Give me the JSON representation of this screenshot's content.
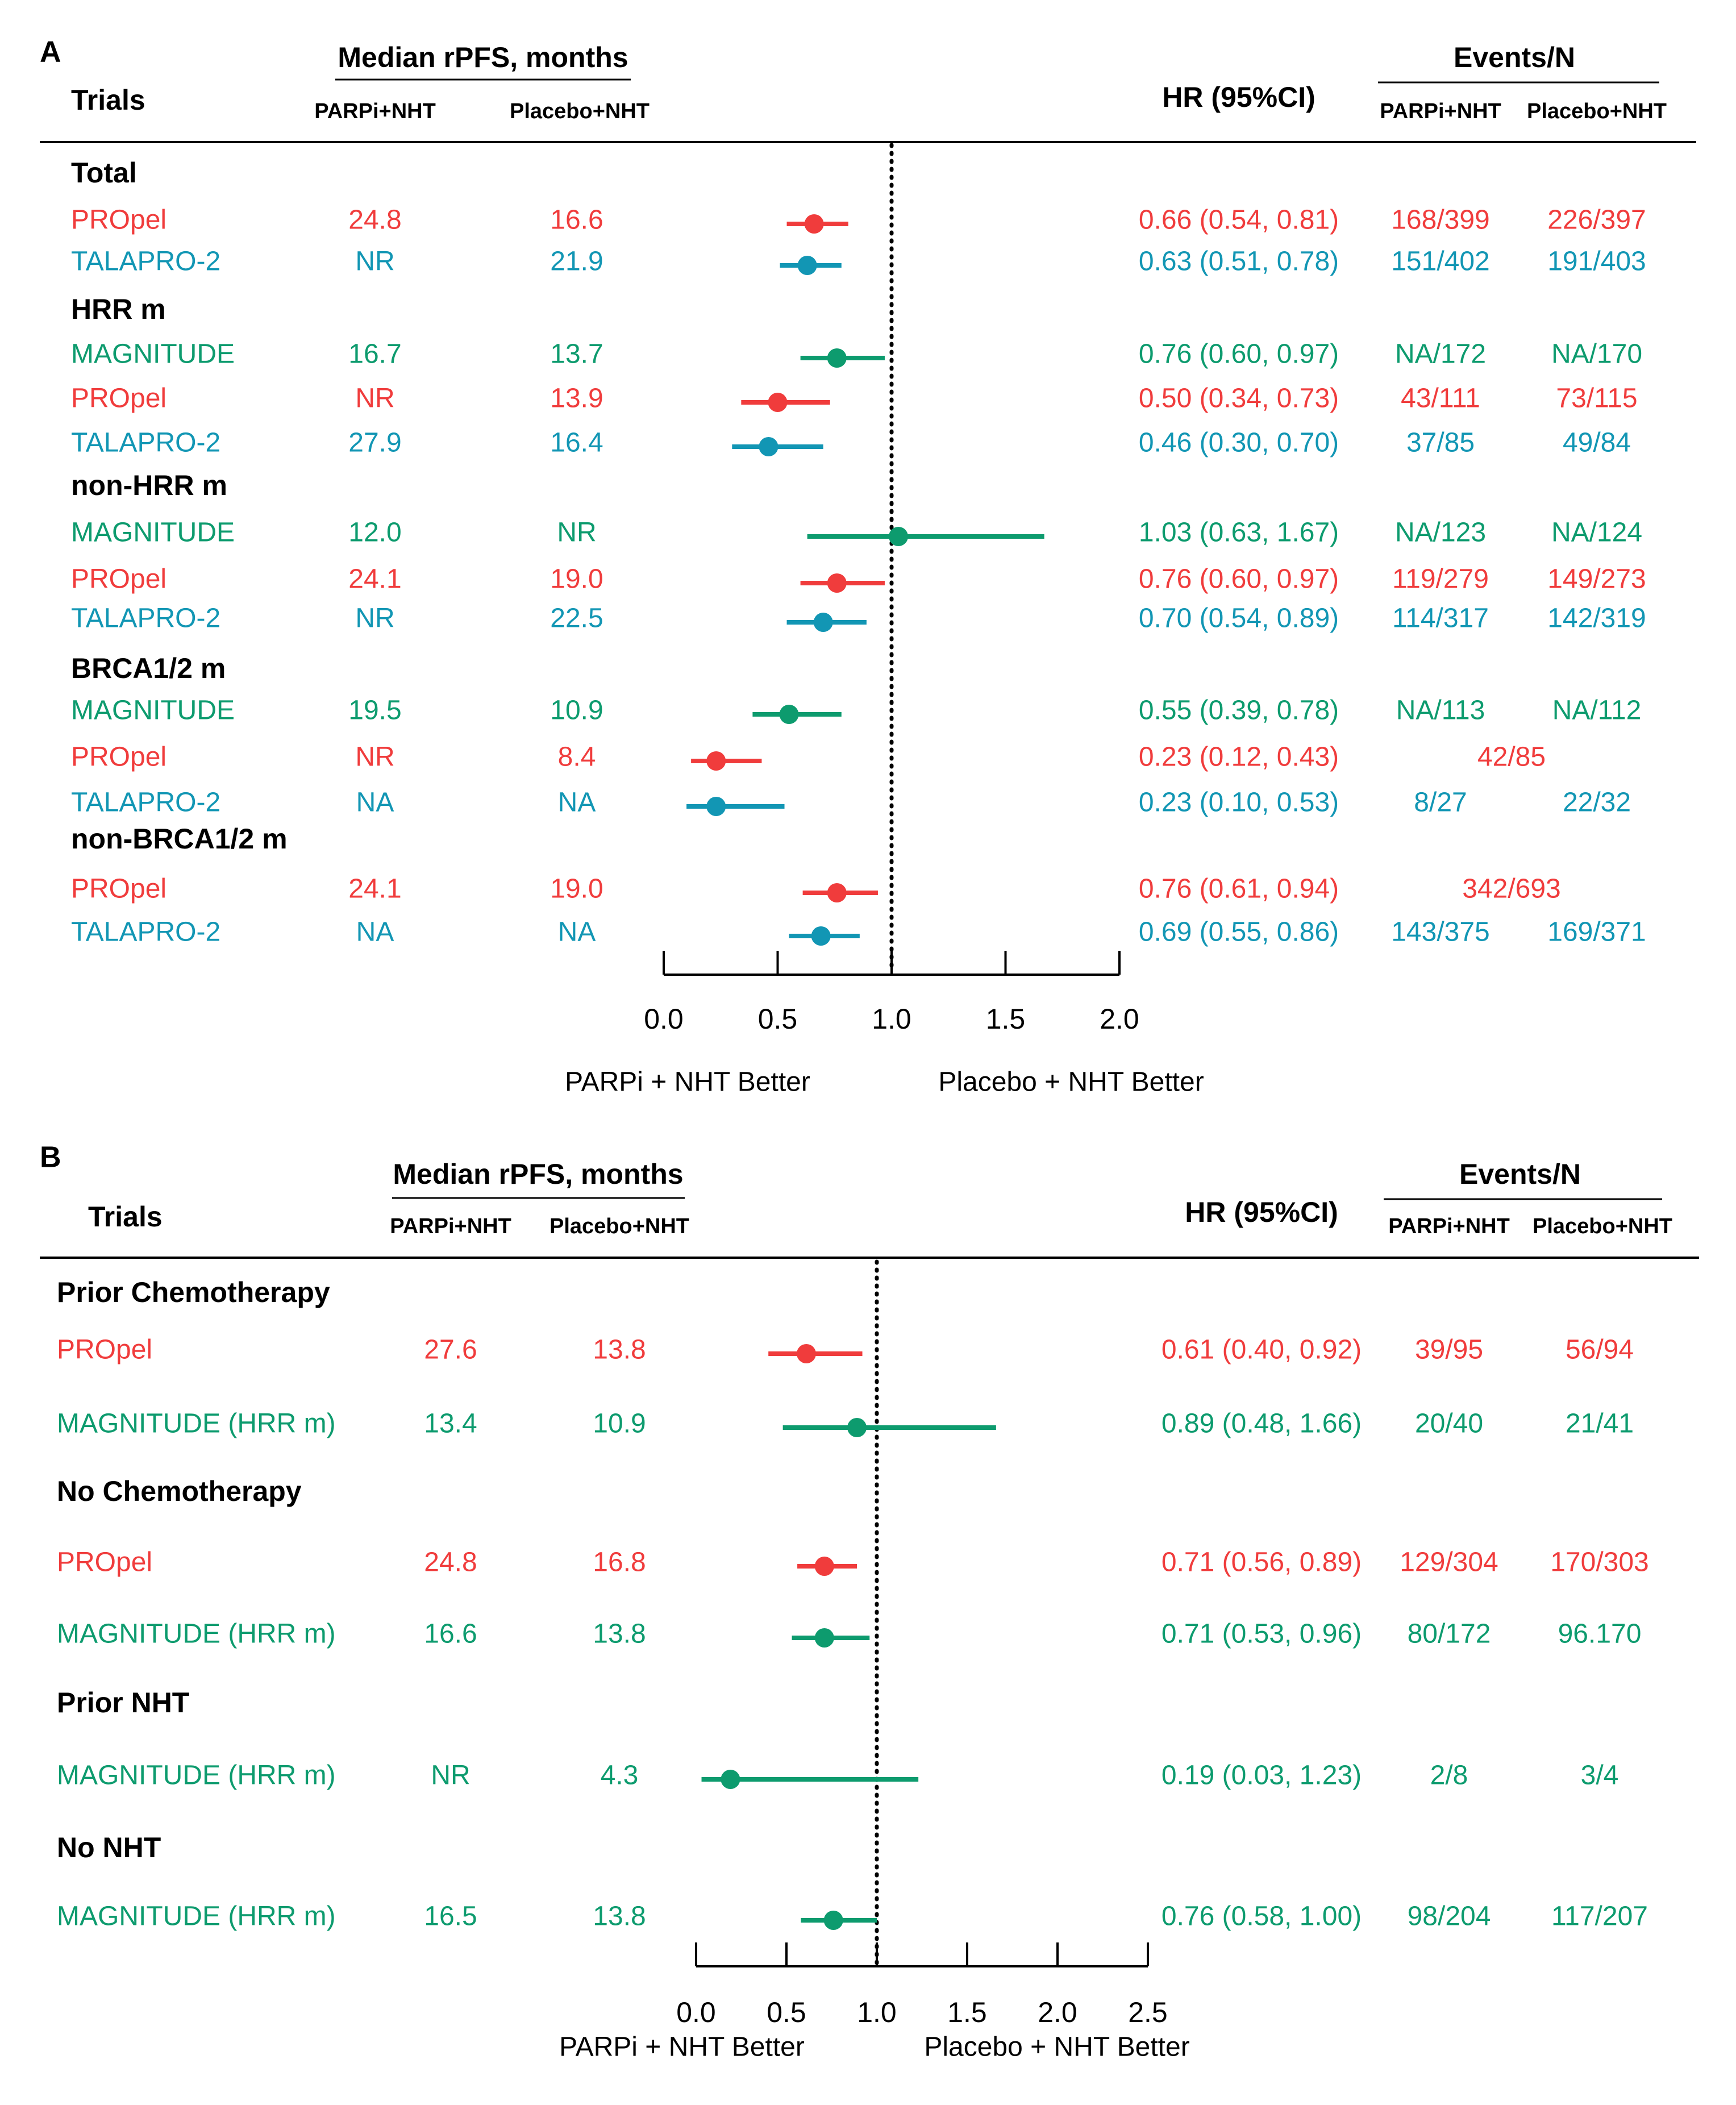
{
  "colors": {
    "propel": "#f03c3c",
    "talapro": "#1296b4",
    "magnitude": "#0d9b6e",
    "black": "#000000"
  },
  "chart_data": [
    {
      "type": "forest",
      "panel_label": "A",
      "header": {
        "trials": "Trials",
        "median_title": "Median rPFS, months",
        "col_parp": "PARPi+NHT",
        "col_placebo": "Placebo+NHT",
        "hr_title": "HR (95%CI)",
        "events_title": "Events/N",
        "ev_parp": "PARPi+NHT",
        "ev_placebo": "Placebo+NHT"
      },
      "xlim": [
        0,
        2.0
      ],
      "ticks": [
        "0.0",
        "0.5",
        "1.0",
        "1.5",
        "2.0"
      ],
      "reference_line": 1.0,
      "left_label": "PARPi + NHT Better",
      "right_label": "Placebo + NHT Better",
      "groups": [
        {
          "title": "Total",
          "rows": [
            {
              "trial": "PROpel",
              "color": "#f03c3c",
              "median_parp": "24.8",
              "median_placebo": "16.6",
              "hr": 0.66,
              "lo": 0.54,
              "hi": 0.81,
              "hr_text": "0.66 (0.54, 0.81)",
              "events_parp": "168/399",
              "events_placebo": "226/397"
            },
            {
              "trial": "TALAPRO-2",
              "color": "#1296b4",
              "median_parp": "NR",
              "median_placebo": "21.9",
              "hr": 0.63,
              "lo": 0.51,
              "hi": 0.78,
              "hr_text": "0.63 (0.51, 0.78)",
              "events_parp": "151/402",
              "events_placebo": "191/403"
            }
          ]
        },
        {
          "title": "HRR m",
          "rows": [
            {
              "trial": "MAGNITUDE",
              "color": "#0d9b6e",
              "median_parp": "16.7",
              "median_placebo": "13.7",
              "hr": 0.76,
              "lo": 0.6,
              "hi": 0.97,
              "hr_text": "0.76 (0.60, 0.97)",
              "events_parp": "NA/172",
              "events_placebo": "NA/170"
            },
            {
              "trial": "PROpel",
              "color": "#f03c3c",
              "median_parp": "NR",
              "median_placebo": "13.9",
              "hr": 0.5,
              "lo": 0.34,
              "hi": 0.73,
              "hr_text": "0.50 (0.34, 0.73)",
              "events_parp": "43/111",
              "events_placebo": "73/115"
            },
            {
              "trial": "TALAPRO-2",
              "color": "#1296b4",
              "median_parp": "27.9",
              "median_placebo": "16.4",
              "hr": 0.46,
              "lo": 0.3,
              "hi": 0.7,
              "hr_text": "0.46 (0.30, 0.70)",
              "events_parp": "37/85",
              "events_placebo": "49/84"
            }
          ]
        },
        {
          "title": "non-HRR m",
          "rows": [
            {
              "trial": "MAGNITUDE",
              "color": "#0d9b6e",
              "median_parp": "12.0",
              "median_placebo": "NR",
              "hr": 1.03,
              "lo": 0.63,
              "hi": 1.67,
              "hr_text": "1.03 (0.63, 1.67)",
              "events_parp": "NA/123",
              "events_placebo": "NA/124"
            },
            {
              "trial": "PROpel",
              "color": "#f03c3c",
              "median_parp": "24.1",
              "median_placebo": "19.0",
              "hr": 0.76,
              "lo": 0.6,
              "hi": 0.97,
              "hr_text": "0.76 (0.60, 0.97)",
              "events_parp": "119/279",
              "events_placebo": "149/273"
            },
            {
              "trial": "TALAPRO-2",
              "color": "#1296b4",
              "median_parp": "NR",
              "median_placebo": "22.5",
              "hr": 0.7,
              "lo": 0.54,
              "hi": 0.89,
              "hr_text": "0.70 (0.54, 0.89)",
              "events_parp": "114/317",
              "events_placebo": "142/319"
            }
          ]
        },
        {
          "title": "BRCA1/2 m",
          "rows": [
            {
              "trial": "MAGNITUDE",
              "color": "#0d9b6e",
              "median_parp": "19.5",
              "median_placebo": "10.9",
              "hr": 0.55,
              "lo": 0.39,
              "hi": 0.78,
              "hr_text": "0.55 (0.39, 0.78)",
              "events_parp": "NA/113",
              "events_placebo": "NA/112"
            },
            {
              "trial": "PROpel",
              "color": "#f03c3c",
              "median_parp": "NR",
              "median_placebo": "8.4",
              "hr": 0.23,
              "lo": 0.12,
              "hi": 0.43,
              "hr_text": "0.23 (0.12, 0.43)",
              "events_combined": "42/85"
            },
            {
              "trial": "TALAPRO-2",
              "color": "#1296b4",
              "median_parp": "NA",
              "median_placebo": "NA",
              "hr": 0.23,
              "lo": 0.1,
              "hi": 0.53,
              "hr_text": "0.23 (0.10, 0.53)",
              "events_parp": "8/27",
              "events_placebo": "22/32"
            }
          ]
        },
        {
          "title": "non-BRCA1/2 m",
          "rows": [
            {
              "trial": "PROpel",
              "color": "#f03c3c",
              "median_parp": "24.1",
              "median_placebo": "19.0",
              "hr": 0.76,
              "lo": 0.61,
              "hi": 0.94,
              "hr_text": "0.76 (0.61, 0.94)",
              "events_combined": "342/693"
            },
            {
              "trial": "TALAPRO-2",
              "color": "#1296b4",
              "median_parp": "NA",
              "median_placebo": "NA",
              "hr": 0.69,
              "lo": 0.55,
              "hi": 0.86,
              "hr_text": "0.69 (0.55, 0.86)",
              "events_parp": "143/375",
              "events_placebo": "169/371"
            }
          ]
        }
      ]
    },
    {
      "type": "forest",
      "panel_label": "B",
      "header": {
        "trials": "Trials",
        "median_title": "Median rPFS, months",
        "col_parp": "PARPi+NHT",
        "col_placebo": "Placebo+NHT",
        "hr_title": "HR (95%CI)",
        "events_title": "Events/N",
        "ev_parp": "PARPi+NHT",
        "ev_placebo": "Placebo+NHT"
      },
      "xlim": [
        0,
        2.5
      ],
      "ticks": [
        "0.0",
        "0.5",
        "1.0",
        "1.5",
        "2.0",
        "2.5"
      ],
      "reference_line": 1.0,
      "left_label": "PARPi + NHT Better",
      "right_label": "Placebo + NHT Better",
      "groups": [
        {
          "title": "Prior Chemotherapy",
          "rows": [
            {
              "trial": "PROpel",
              "color": "#f03c3c",
              "median_parp": "27.6",
              "median_placebo": "13.8",
              "hr": 0.61,
              "lo": 0.4,
              "hi": 0.92,
              "hr_text": "0.61 (0.40, 0.92)",
              "events_parp": "39/95",
              "events_placebo": "56/94"
            },
            {
              "trial": "MAGNITUDE (HRR m)",
              "color": "#0d9b6e",
              "median_parp": "13.4",
              "median_placebo": "10.9",
              "hr": 0.89,
              "lo": 0.48,
              "hi": 1.66,
              "hr_text": "0.89 (0.48, 1.66)",
              "events_parp": "20/40",
              "events_placebo": "21/41"
            }
          ]
        },
        {
          "title": "No Chemotherapy",
          "rows": [
            {
              "trial": "PROpel",
              "color": "#f03c3c",
              "median_parp": "24.8",
              "median_placebo": "16.8",
              "hr": 0.71,
              "lo": 0.56,
              "hi": 0.89,
              "hr_text": "0.71 (0.56, 0.89)",
              "events_parp": "129/304",
              "events_placebo": "170/303"
            },
            {
              "trial": "MAGNITUDE (HRR m)",
              "color": "#0d9b6e",
              "median_parp": "16.6",
              "median_placebo": "13.8",
              "hr": 0.71,
              "lo": 0.53,
              "hi": 0.96,
              "hr_text": "0.71 (0.53, 0.96)",
              "events_parp": "80/172",
              "events_placebo": "96.170"
            }
          ]
        },
        {
          "title": "Prior NHT",
          "rows": [
            {
              "trial": "MAGNITUDE (HRR m)",
              "color": "#0d9b6e",
              "median_parp": "NR",
              "median_placebo": "4.3",
              "hr": 0.19,
              "lo": 0.03,
              "hi": 1.23,
              "hr_text": "0.19 (0.03, 1.23)",
              "events_parp": "2/8",
              "events_placebo": "3/4"
            }
          ]
        },
        {
          "title": "No NHT",
          "rows": [
            {
              "trial": "MAGNITUDE (HRR m)",
              "color": "#0d9b6e",
              "median_parp": "16.5",
              "median_placebo": "13.8",
              "hr": 0.76,
              "lo": 0.58,
              "hi": 1.0,
              "hr_text": "0.76 (0.58, 1.00)",
              "events_parp": "98/204",
              "events_placebo": "117/207"
            }
          ]
        }
      ]
    }
  ]
}
